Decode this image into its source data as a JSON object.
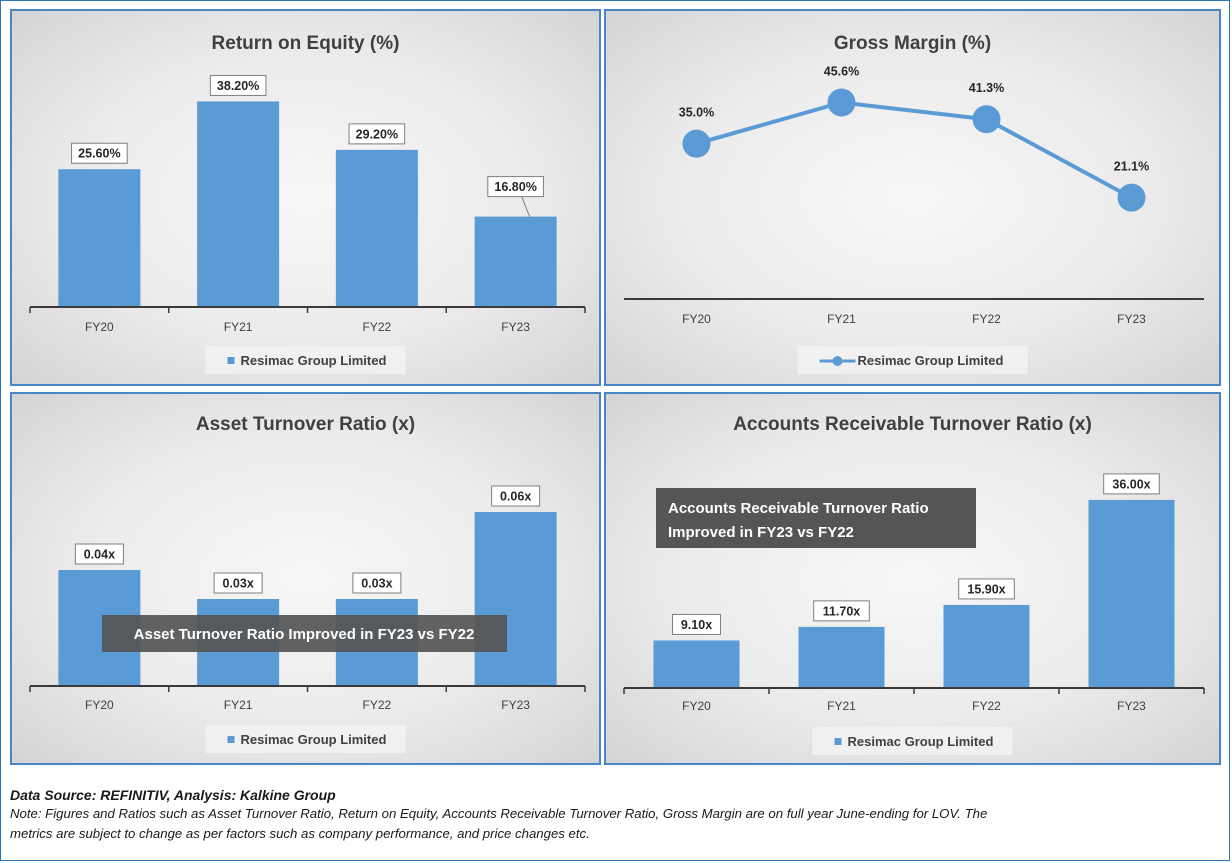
{
  "colors": {
    "bar": "#5b9bd5",
    "line": "#5b9bd5",
    "annotation_bg": "#555555",
    "panel_border": "#4a86c5"
  },
  "chart_data": [
    {
      "id": "roe",
      "type": "bar",
      "title": "Return on Equity (%)",
      "categories": [
        "FY20",
        "FY21",
        "FY22",
        "FY23"
      ],
      "series": [
        {
          "name": "Resimac Group Limited",
          "values": [
            25.6,
            38.2,
            29.2,
            16.8
          ]
        }
      ],
      "data_labels": [
        "25.60%",
        "38.20%",
        "29.20%",
        "16.80%"
      ],
      "ylim": [
        0,
        42
      ],
      "grid": false,
      "legend": "bottom"
    },
    {
      "id": "gm",
      "type": "line",
      "title": "Gross Margin (%)",
      "categories": [
        "FY20",
        "FY21",
        "FY22",
        "FY23"
      ],
      "series": [
        {
          "name": "Resimac Group Limited",
          "values": [
            35.0,
            45.6,
            41.3,
            21.1
          ]
        }
      ],
      "data_labels": [
        "35.0%",
        "45.6%",
        "41.3%",
        "21.1%"
      ],
      "ylim": [
        -5,
        55
      ],
      "grid": false,
      "legend": "bottom"
    },
    {
      "id": "atr",
      "type": "bar",
      "title": "Asset Turnover Ratio (x)",
      "categories": [
        "FY20",
        "FY21",
        "FY22",
        "FY23"
      ],
      "series": [
        {
          "name": "Resimac Group Limited",
          "values": [
            0.04,
            0.03,
            0.03,
            0.06
          ]
        }
      ],
      "data_labels": [
        "0.04x",
        "0.03x",
        "0.03x",
        "0.06x"
      ],
      "ylim": [
        0,
        0.08
      ],
      "grid": false,
      "legend": "bottom",
      "annotation": "Asset Turnover Ratio Improved in FY23 vs FY22"
    },
    {
      "id": "artr",
      "type": "bar",
      "title": "Accounts Receivable Turnover Ratio (x)",
      "categories": [
        "FY20",
        "FY21",
        "FY22",
        "FY23"
      ],
      "series": [
        {
          "name": "Resimac Group Limited",
          "values": [
            9.1,
            11.7,
            15.9,
            36.0
          ]
        }
      ],
      "data_labels": [
        "9.10x",
        "11.70x",
        "15.90x",
        "36.00x"
      ],
      "ylim": [
        0,
        40
      ],
      "grid": false,
      "legend": "bottom",
      "annotation": [
        "Accounts Receivable Turnover Ratio",
        "Improved in FY23 vs FY22"
      ]
    }
  ],
  "footer": {
    "source": "Data Source: REFINITIV, Analysis: Kalkine Group",
    "note_line1": "Note: Figures and Ratios such as Asset Turnover Ratio, Return on Equity, Accounts Receivable Turnover Ratio, Gross Margin are on full year June-ending for LOV. The",
    "note_line2": "metrics are subject to change as per factors such as company performance, and price changes etc."
  }
}
